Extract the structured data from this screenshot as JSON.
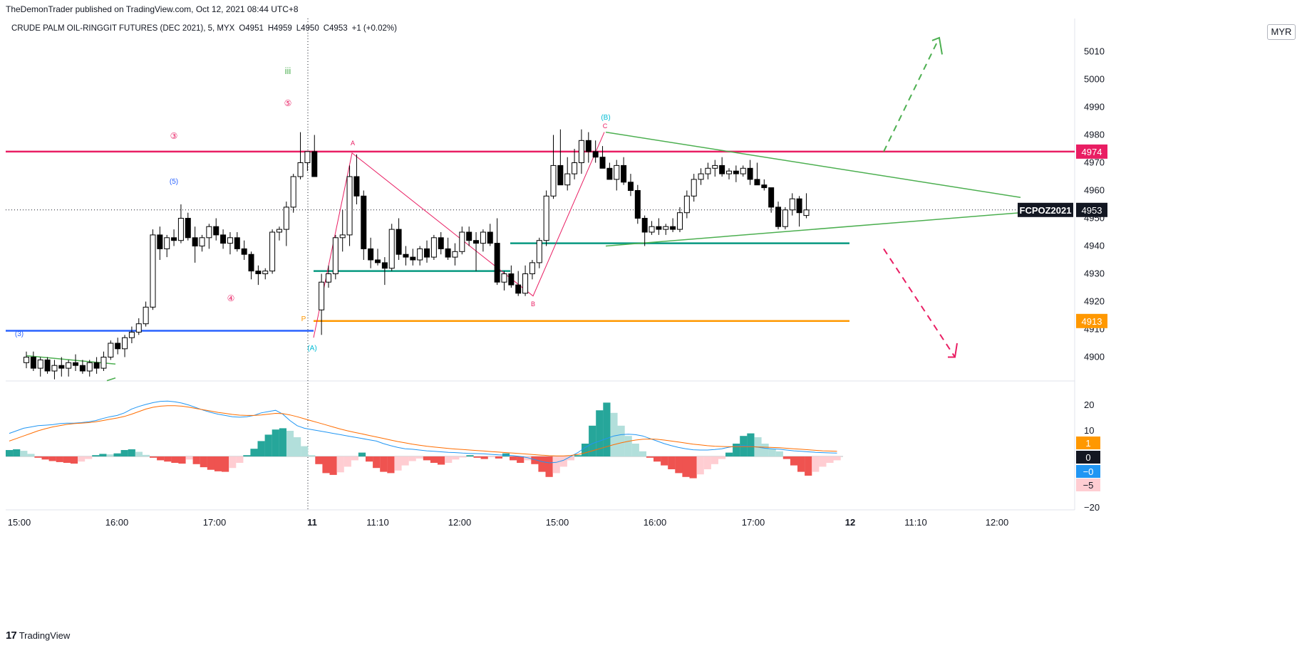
{
  "header": {
    "publisher": "TheDemonTrader published on TradingView.com, Oct 12, 2021 08:44 UTC+8",
    "symbol": "CRUDE PALM OIL-RINGGIT FUTURES (DEC 2021), 5, MYX",
    "o": "O4951",
    "h": "H4959",
    "l": "L4950",
    "c": "C4953",
    "change": "+1 (+0.02%)",
    "currency": "MYR"
  },
  "footer": {
    "brand": "TradingView",
    "logo": "tradingview-logo-icon"
  },
  "colors": {
    "up": "#ffffff",
    "down": "#000000",
    "resistance": "#e91e63",
    "support_blue": "#2962ff",
    "support_teal": "#089981",
    "pivot_orange": "#ff9800",
    "triangle": "#4caf50",
    "hist_pos_strong": "#26a69a",
    "hist_pos_weak": "#b2dfdb",
    "hist_neg_strong": "#ef5350",
    "hist_neg_weak": "#ffcdd2",
    "macd": "#2196f3",
    "signal": "#ff6d00"
  },
  "chart_data": {
    "type": "candlestick",
    "y_axis": {
      "ticks": [
        4900,
        4910,
        4920,
        4930,
        4940,
        4950,
        4960,
        4970,
        4980,
        4990,
        5000,
        5010
      ],
      "range": [
        4891,
        5021
      ]
    },
    "x_axis": {
      "ticks": [
        "15:00",
        "16:00",
        "17:00",
        "11",
        "11:10",
        "12:00",
        "15:00",
        "16:00",
        "17:00",
        "12",
        "11:10",
        "12:00"
      ]
    },
    "price_labels": [
      {
        "text": "4974",
        "value": 4974,
        "color": "#e91e63"
      },
      {
        "text": "4953",
        "value": 4953,
        "color": "#131722",
        "symbol": "FCPOZ2021"
      },
      {
        "text": "4913",
        "value": 4913,
        "color": "#ff9800"
      }
    ],
    "candles": [
      [
        4898,
        4902,
        4896,
        4900
      ],
      [
        4900,
        4902,
        4895,
        4896
      ],
      [
        4896,
        4900,
        4893,
        4899
      ],
      [
        4899,
        4900,
        4894,
        4895
      ],
      [
        4895,
        4899,
        4892,
        4897
      ],
      [
        4897,
        4900,
        4893,
        4896
      ],
      [
        4896,
        4899,
        4893,
        4898
      ],
      [
        4898,
        4901,
        4895,
        4897
      ],
      [
        4897,
        4899,
        4894,
        4895
      ],
      [
        4895,
        4899,
        4893,
        4898
      ],
      [
        4898,
        4900,
        4894,
        4896
      ],
      [
        4896,
        4902,
        4895,
        4900
      ],
      [
        4900,
        4906,
        4899,
        4905
      ],
      [
        4905,
        4907,
        4901,
        4903
      ],
      [
        4903,
        4908,
        4900,
        4907
      ],
      [
        4907,
        4911,
        4905,
        4909
      ],
      [
        4909,
        4914,
        4908,
        4912
      ],
      [
        4912,
        4920,
        4911,
        4918
      ],
      [
        4918,
        4946,
        4917,
        4944
      ],
      [
        4944,
        4947,
        4935,
        4939
      ],
      [
        4939,
        4944,
        4936,
        4943
      ],
      [
        4943,
        4946,
        4940,
        4942
      ],
      [
        4942,
        4955,
        4941,
        4950
      ],
      [
        4950,
        4952,
        4942,
        4943
      ],
      [
        4943,
        4947,
        4934,
        4940
      ],
      [
        4940,
        4944,
        4938,
        4943
      ],
      [
        4943,
        4948,
        4939,
        4947
      ],
      [
        4947,
        4950,
        4942,
        4944
      ],
      [
        4944,
        4946,
        4939,
        4941
      ],
      [
        4941,
        4945,
        4937,
        4943
      ],
      [
        4943,
        4945,
        4938,
        4939
      ],
      [
        4939,
        4942,
        4935,
        4937
      ],
      [
        4937,
        4938,
        4928,
        4931
      ],
      [
        4931,
        4933,
        4926,
        4930
      ],
      [
        4930,
        4932,
        4928,
        4931
      ],
      [
        4931,
        4946,
        4930,
        4945
      ],
      [
        4945,
        4947,
        4942,
        4946
      ],
      [
        4946,
        4956,
        4940,
        4954
      ],
      [
        4954,
        4966,
        4952,
        4965
      ],
      [
        4965,
        4981,
        4964,
        4970
      ],
      [
        4970,
        4974,
        4967,
        4974
      ],
      [
        4974,
        4980,
        4965,
        4965
      ],
      [
        4917,
        4930,
        4908,
        4927
      ],
      [
        4927,
        4933,
        4925,
        4930
      ],
      [
        4930,
        4944,
        4928,
        4943
      ],
      [
        4943,
        4953,
        4938,
        4944
      ],
      [
        4944,
        4969,
        4940,
        4965
      ],
      [
        4965,
        4973,
        4955,
        4958
      ],
      [
        4958,
        4960,
        4935,
        4939
      ],
      [
        4939,
        4943,
        4932,
        4935
      ],
      [
        4935,
        4939,
        4933,
        4934
      ],
      [
        4934,
        4936,
        4926,
        4932
      ],
      [
        4932,
        4948,
        4931,
        4946
      ],
      [
        4946,
        4950,
        4935,
        4937
      ],
      [
        4937,
        4940,
        4933,
        4936
      ],
      [
        4936,
        4939,
        4933,
        4935
      ],
      [
        4935,
        4940,
        4933,
        4939
      ],
      [
        4939,
        4942,
        4934,
        4936
      ],
      [
        4936,
        4944,
        4935,
        4943
      ],
      [
        4943,
        4945,
        4937,
        4939
      ],
      [
        4939,
        4943,
        4935,
        4936
      ],
      [
        4936,
        4941,
        4933,
        4938
      ],
      [
        4938,
        4947,
        4937,
        4945
      ],
      [
        4945,
        4947,
        4940,
        4942
      ],
      [
        4942,
        4945,
        4931,
        4941
      ],
      [
        4941,
        4946,
        4938,
        4945
      ],
      [
        4945,
        4948,
        4940,
        4941
      ],
      [
        4941,
        4950,
        4926,
        4927
      ],
      [
        4927,
        4931,
        4924,
        4930
      ],
      [
        4930,
        4933,
        4925,
        4926
      ],
      [
        4926,
        4931,
        4922,
        4923
      ],
      [
        4923,
        4933,
        4922,
        4930
      ],
      [
        4930,
        4935,
        4928,
        4934
      ],
      [
        4934,
        4943,
        4932,
        4942
      ],
      [
        4942,
        4960,
        4940,
        4958
      ],
      [
        4958,
        4980,
        4957,
        4969
      ],
      [
        4969,
        4982,
        4962,
        4962
      ],
      [
        4962,
        4972,
        4960,
        4966
      ],
      [
        4966,
        4975,
        4964,
        4970
      ],
      [
        4970,
        4982,
        4966,
        4978
      ],
      [
        4978,
        4981,
        4970,
        4974
      ],
      [
        4974,
        4978,
        4970,
        4972
      ],
      [
        4972,
        4976,
        4968,
        4968
      ],
      [
        4968,
        4970,
        4964,
        4964
      ],
      [
        4964,
        4971,
        4960,
        4969
      ],
      [
        4969,
        4972,
        4962,
        4963
      ],
      [
        4963,
        4966,
        4958,
        4960
      ],
      [
        4960,
        4962,
        4948,
        4950
      ],
      [
        4950,
        4951,
        4940,
        4945
      ],
      [
        4945,
        4949,
        4944,
        4947
      ],
      [
        4947,
        4950,
        4944,
        4946
      ],
      [
        4946,
        4948,
        4944,
        4947
      ],
      [
        4947,
        4950,
        4945,
        4946
      ],
      [
        4946,
        4954,
        4945,
        4952
      ],
      [
        4952,
        4960,
        4950,
        4958
      ],
      [
        4958,
        4966,
        4956,
        4964
      ],
      [
        4964,
        4968,
        4962,
        4966
      ],
      [
        4966,
        4970,
        4964,
        4968
      ],
      [
        4968,
        4971,
        4965,
        4969
      ],
      [
        4969,
        4972,
        4965,
        4966
      ],
      [
        4966,
        4968,
        4964,
        4967
      ],
      [
        4967,
        4969,
        4963,
        4966
      ],
      [
        4966,
        4969,
        4965,
        4968
      ],
      [
        4968,
        4971,
        4962,
        4964
      ],
      [
        4964,
        4970,
        4962,
        4962
      ],
      [
        4962,
        4964,
        4960,
        4961
      ],
      [
        4961,
        4961,
        4952,
        4954
      ],
      [
        4954,
        4956,
        4946,
        4947
      ],
      [
        4947,
        4954,
        4946,
        4953
      ],
      [
        4953,
        4959,
        4951,
        4957
      ],
      [
        4957,
        4958,
        4947,
        4952
      ],
      [
        4951,
        4959,
        4950,
        4953
      ]
    ],
    "annotations": [
      "(3)",
      "(5)",
      "③",
      "④",
      "⑤",
      "iii",
      "P",
      "(A)",
      "A",
      "B",
      "(B)",
      "C"
    ],
    "macd": {
      "y_ticks": [
        "20",
        "10",
        "0",
        "−20"
      ],
      "labels": [
        {
          "text": "1",
          "color": "#ff9800"
        },
        {
          "text": "0",
          "color": "#131722"
        },
        {
          "text": "−0",
          "color": "#2196f3"
        },
        {
          "text": "−5",
          "color": "#ffcdd2"
        }
      ],
      "histogram": [
        2.5,
        2.8,
        2.2,
        1.0,
        -0.5,
        -1.2,
        -1.8,
        -2.2,
        -2.5,
        -2.8,
        -2.0,
        -1.0,
        0.5,
        1.0,
        0.8,
        1.2,
        2.5,
        2.8,
        1.8,
        0.6,
        -0.5,
        -1.5,
        -2.0,
        -2.5,
        -2.8,
        -1.2,
        -3.0,
        -4.2,
        -5.2,
        -5.8,
        -6.0,
        -4.5,
        -2.5,
        0.5,
        3.0,
        6.0,
        8.5,
        10.5,
        11.0,
        10.0,
        7.5,
        4.0,
        0.5,
        -3.0,
        -6.5,
        -7.2,
        -6.2,
        -4.0,
        -1.5,
        1.5,
        -2.0,
        -4.5,
        -6.0,
        -6.5,
        -5.5,
        -3.5,
        -1.8,
        -0.8,
        -1.5,
        -2.5,
        -3.2,
        -2.5,
        -1.2,
        -0.4,
        0.5,
        -0.5,
        -1.0,
        -0.3,
        -0.8,
        1.2,
        -1.5,
        -2.5,
        -1.5,
        -3.0,
        -6.0,
        -8.0,
        -6.5,
        -4.0,
        -1.5,
        0.5,
        5.0,
        12.0,
        18.0,
        21.0,
        17.0,
        12.0,
        8.0,
        5.0,
        2.0,
        -0.5,
        -2.0,
        -3.5,
        -5.0,
        -6.5,
        -8.0,
        -8.5,
        -7.0,
        -5.0,
        -3.0,
        -1.0,
        1.5,
        5.0,
        8.0,
        9.0,
        7.5,
        5.0,
        3.0,
        2.0,
        -1.0,
        -3.5,
        -6.0,
        -7.5,
        -6.0,
        -4.0,
        -2.5,
        -1.5
      ],
      "macd_line": [
        9,
        10,
        11,
        11.5,
        12,
        12.2,
        12.4,
        12.8,
        13,
        13,
        13.2,
        13.5,
        14,
        14.8,
        15.5,
        16,
        17,
        18.5,
        19.5,
        20.3,
        21,
        21.5,
        21.6,
        21.3,
        20.8,
        20,
        19,
        18,
        17.2,
        16.5,
        16,
        15.5,
        15.3,
        15.5,
        16,
        17,
        17.5,
        18,
        16.5,
        14,
        12,
        11,
        10.5,
        10,
        9.5,
        9,
        8.5,
        8,
        7.5,
        7,
        6.5,
        6,
        5,
        4.2,
        3.5,
        3,
        2.8,
        2.5,
        2.2,
        2,
        1.8,
        1.6,
        1.5,
        1.3,
        1.2,
        1.1,
        1,
        0.8,
        0.6,
        0.5,
        0.3,
        0,
        -0.5,
        -1.2,
        -2,
        -2.5,
        -2.3,
        -1.5,
        0,
        1.5,
        3.5,
        5,
        6,
        7,
        8,
        8.5,
        8.7,
        8.5,
        8,
        7,
        6,
        5,
        4.2,
        3.5,
        3,
        2.6,
        2.5,
        2.5,
        2.7,
        3,
        3.6,
        4,
        4.2,
        4,
        3.6,
        3.2,
        3,
        2.8,
        2.5,
        2.2,
        2,
        1.8,
        1.6,
        1.5,
        1.4,
        1.3
      ],
      "signal_line": [
        6,
        7,
        8,
        9,
        10,
        10.8,
        11.5,
        12,
        12.5,
        12.8,
        13,
        13.2,
        13.5,
        14,
        14.5,
        15,
        15.6,
        16.5,
        17.5,
        18.5,
        19.2,
        19.6,
        19.8,
        19.8,
        19.6,
        19.2,
        18.7,
        18.2,
        17.7,
        17.2,
        16.8,
        16.4,
        16.1,
        16,
        16,
        16.2,
        16.5,
        16.8,
        16.7,
        16.2,
        15.5,
        14.7,
        13.9,
        13.1,
        12.3,
        11.5,
        10.7,
        10,
        9.4,
        8.8,
        8.2,
        7.6,
        7,
        6.4,
        5.8,
        5.3,
        4.8,
        4.4,
        4,
        3.7,
        3.4,
        3.1,
        2.9,
        2.7,
        2.5,
        2.3,
        2.1,
        1.9,
        1.7,
        1.5,
        1.3,
        1.1,
        0.9,
        0.7,
        0.5,
        0.3,
        0.2,
        0.2,
        0.4,
        0.8,
        1.4,
        2.2,
        3,
        3.8,
        4.6,
        5.3,
        5.9,
        6.4,
        6.7,
        6.8,
        6.7,
        6.4,
        6,
        5.6,
        5.2,
        4.8,
        4.5,
        4.2,
        4,
        3.9,
        3.8,
        3.8,
        3.8,
        3.8,
        3.7,
        3.6,
        3.5,
        3.4,
        3.2,
        3,
        2.8,
        2.6,
        2.4,
        2.2,
        2.1,
        2
      ]
    }
  }
}
